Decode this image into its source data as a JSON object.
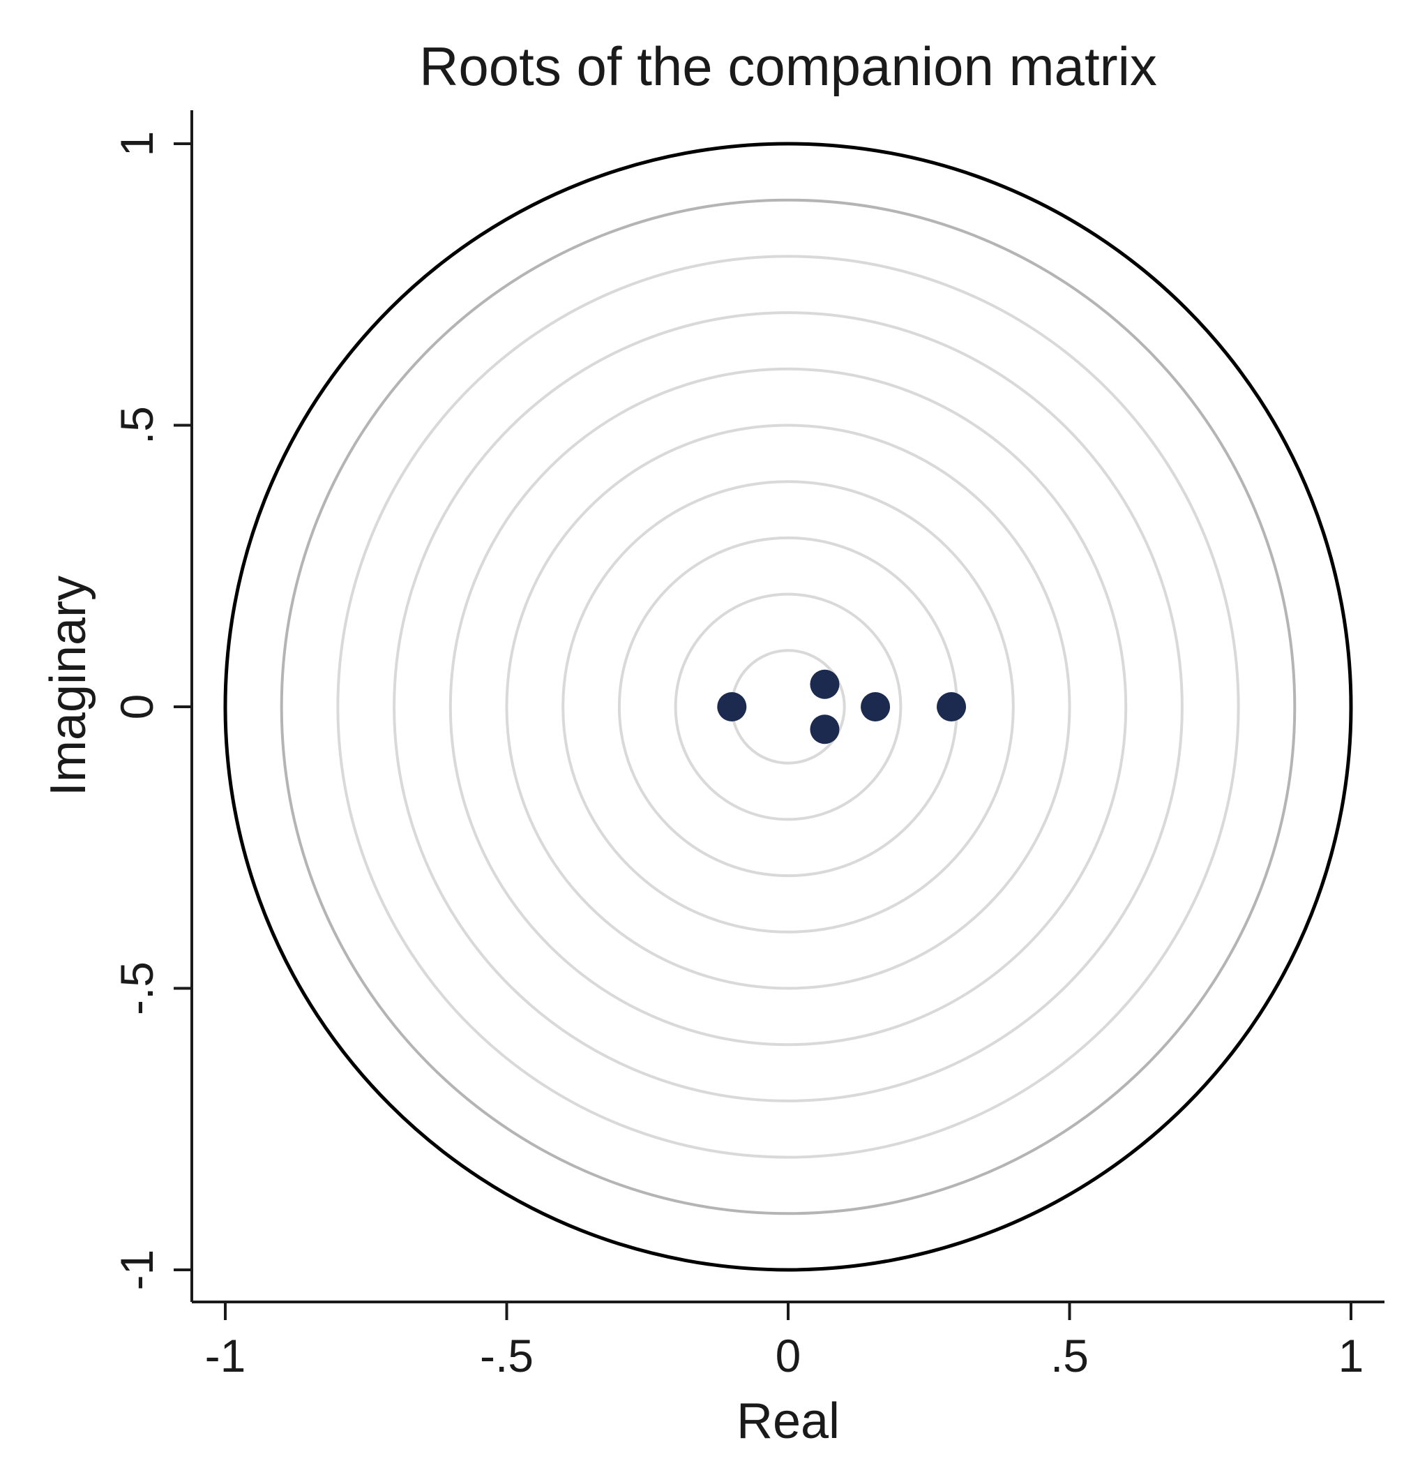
{
  "chart_data": {
    "type": "scatter",
    "title": "Roots of the companion matrix",
    "xlabel": "Real",
    "ylabel": "Imaginary",
    "xlim": [
      -1,
      1
    ],
    "ylim": [
      -1,
      1
    ],
    "x_ticks": [
      {
        "value": -1,
        "label": "-1"
      },
      {
        "value": -0.5,
        "label": "-.5"
      },
      {
        "value": 0,
        "label": "0"
      },
      {
        "value": 0.5,
        "label": ".5"
      },
      {
        "value": 1,
        "label": "1"
      }
    ],
    "y_ticks": [
      {
        "value": -1,
        "label": "-1"
      },
      {
        "value": -0.5,
        "label": "-.5"
      },
      {
        "value": 0,
        "label": "0"
      },
      {
        "value": 0.5,
        "label": ".5"
      },
      {
        "value": 1,
        "label": "1"
      }
    ],
    "grid": false,
    "unit_circle": {
      "radius": 1,
      "color": "#000000"
    },
    "reference_circles": [
      {
        "radius": 0.9,
        "color": "#b4b4b4"
      },
      {
        "radius": 0.8,
        "color": "#d9d9d9"
      },
      {
        "radius": 0.7,
        "color": "#d9d9d9"
      },
      {
        "radius": 0.6,
        "color": "#d9d9d9"
      },
      {
        "radius": 0.5,
        "color": "#d9d9d9"
      },
      {
        "radius": 0.4,
        "color": "#d9d9d9"
      },
      {
        "radius": 0.3,
        "color": "#d9d9d9"
      },
      {
        "radius": 0.2,
        "color": "#d9d9d9"
      },
      {
        "radius": 0.1,
        "color": "#d9d9d9"
      }
    ],
    "series": [
      {
        "color": "#1b2a4e",
        "points": [
          {
            "x": -0.1,
            "y": 0
          },
          {
            "x": 0.065,
            "y": 0.04
          },
          {
            "x": 0.065,
            "y": -0.04
          },
          {
            "x": 0.155,
            "y": 0
          },
          {
            "x": 0.29,
            "y": 0
          }
        ]
      }
    ]
  }
}
